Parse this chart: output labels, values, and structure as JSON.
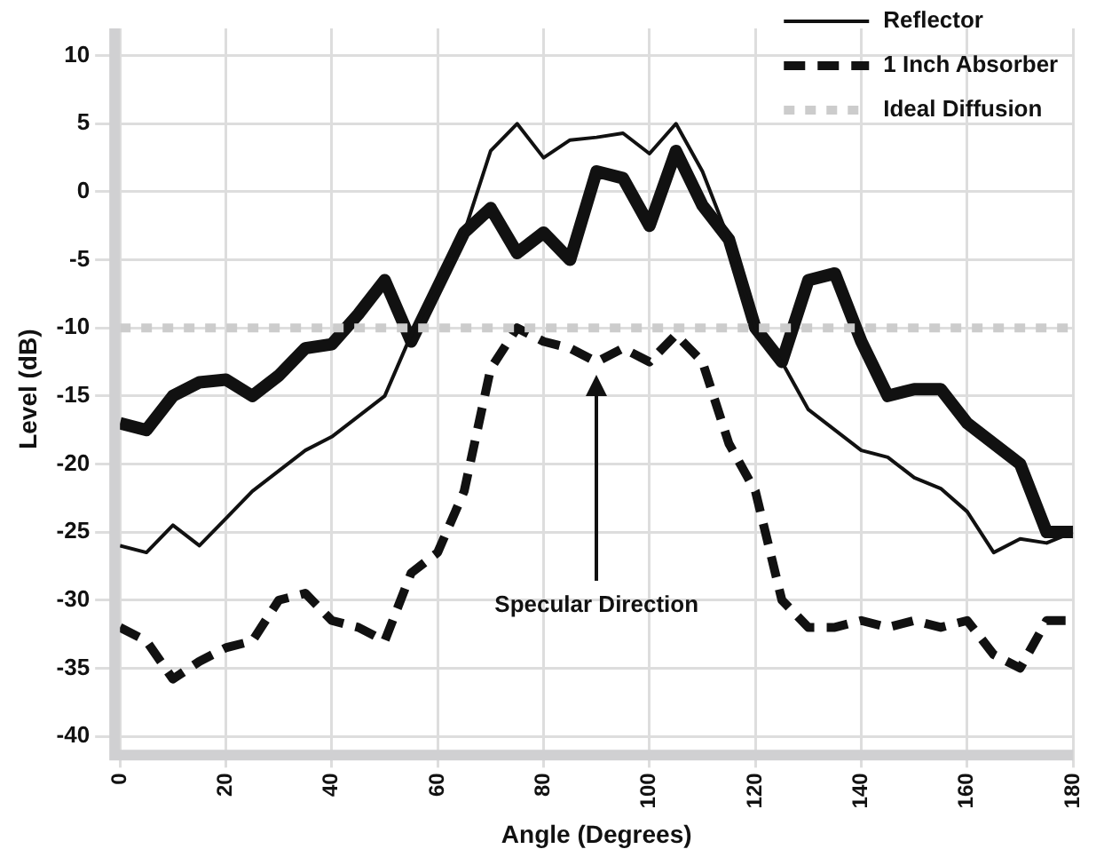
{
  "chart_data": {
    "type": "line",
    "xlabel": "Angle (Degrees)",
    "ylabel": "Level (dB)",
    "x": [
      0,
      5,
      10,
      15,
      20,
      25,
      30,
      35,
      40,
      45,
      50,
      55,
      60,
      65,
      70,
      75,
      80,
      85,
      90,
      95,
      100,
      105,
      110,
      115,
      120,
      125,
      130,
      135,
      140,
      145,
      150,
      155,
      160,
      165,
      170,
      175,
      180
    ],
    "series": [
      {
        "color": "#111111",
        "line_style": "solid",
        "values": [
          -17,
          -17.5,
          -15,
          -14,
          -13.8,
          -15,
          -13.5,
          -11.5,
          -11.2,
          -9,
          -6.5,
          -11,
          -7,
          -3,
          -1.2,
          -4.5,
          -3,
          -5,
          1.5,
          1,
          -2.5,
          3,
          -1,
          -3.5,
          -10,
          -12.5,
          -6.5,
          -6,
          -11,
          -15,
          -14.5,
          -14.5,
          -17,
          -18.5,
          -20,
          -25,
          -25
        ]
      },
      {
        "name": "Reflector",
        "color": "#111111",
        "line_style": "solid",
        "values": [
          -26,
          -26.5,
          -24.5,
          -26,
          -24,
          -22,
          -20.5,
          -19,
          -18,
          -16.5,
          -15,
          -10.5,
          -7,
          -3,
          3,
          5,
          2.5,
          3.8,
          4,
          4.3,
          2.8,
          5,
          1.5,
          -3.5,
          -10,
          -12.5,
          -16,
          -17.5,
          -19,
          -19.5,
          -21,
          -21.8,
          -23.5,
          -26.5,
          -25.5,
          -25.8,
          -25
        ]
      },
      {
        "name": "1 Inch Absorber",
        "color": "#111111",
        "line_style": "dashed",
        "values": [
          -32,
          -33,
          -35.8,
          -34.5,
          -33.5,
          -33,
          -30,
          -29.5,
          -31.5,
          -32,
          -33,
          -28,
          -26.5,
          -22,
          -13,
          -10,
          -11,
          -11.5,
          -12.5,
          -11.5,
          -12.5,
          -10.5,
          -12.5,
          -18.5,
          -22,
          -30,
          -32,
          -32,
          -31.5,
          -32,
          -31.5,
          -32,
          -31.5,
          -34,
          -35,
          -31.5,
          -31.5
        ]
      },
      {
        "name": "Ideal Diffusion",
        "color": "#cccccc",
        "line_style": "dotted",
        "x": [
          0,
          180
        ],
        "values": [
          -10,
          -10
        ]
      }
    ],
    "annotations": [
      "Specular Direction"
    ],
    "xlim": [
      0,
      180
    ],
    "xticks": [
      0,
      20,
      40,
      60,
      80,
      100,
      120,
      140,
      160,
      180
    ],
    "ylim": [
      -41,
      12
    ],
    "yticks": [
      -40,
      -35,
      -30,
      -25,
      -20,
      -15,
      -10,
      -5,
      0,
      5,
      10
    ],
    "grid": true,
    "legend": "top right",
    "marker": "none"
  }
}
